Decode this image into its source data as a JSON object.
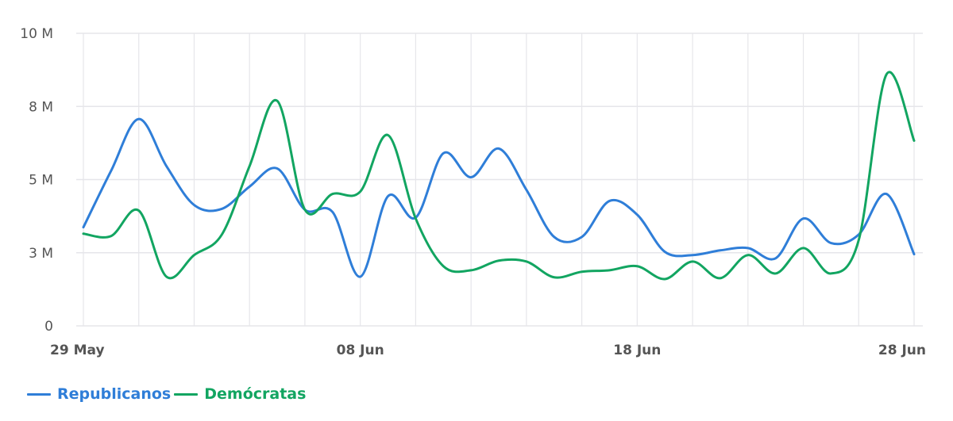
{
  "chart_data": {
    "type": "line",
    "title": "",
    "xlabel": "",
    "ylabel": "",
    "ylim": [
      0,
      10
    ],
    "y_ticks": [
      {
        "value": 0,
        "label": "0"
      },
      {
        "value": 2.5,
        "label": "3 M"
      },
      {
        "value": 5,
        "label": "5 M"
      },
      {
        "value": 7.5,
        "label": "8 M"
      },
      {
        "value": 10,
        "label": "10 M"
      }
    ],
    "x_ticks": [
      {
        "index": 0,
        "label": "29 May"
      },
      {
        "index": 10,
        "label": "08 Jun"
      },
      {
        "index": 20,
        "label": "18 Jun"
      },
      {
        "index": 30,
        "label": "28 Jun"
      }
    ],
    "x": [
      "29 May",
      "30 May",
      "31 May",
      "01 Jun",
      "02 Jun",
      "03 Jun",
      "04 Jun",
      "05 Jun",
      "06 Jun",
      "07 Jun",
      "08 Jun",
      "09 Jun",
      "10 Jun",
      "11 Jun",
      "12 Jun",
      "13 Jun",
      "14 Jun",
      "15 Jun",
      "16 Jun",
      "17 Jun",
      "18 Jun",
      "19 Jun",
      "20 Jun",
      "21 Jun",
      "22 Jun",
      "23 Jun",
      "24 Jun",
      "25 Jun",
      "26 Jun",
      "27 Jun",
      "28 Jun"
    ],
    "grid": true,
    "legend_position": "bottom-left",
    "series": [
      {
        "name": "Republicanos",
        "color": "#2f7ed8",
        "values": [
          3.37,
          5.3,
          7.07,
          5.46,
          4.13,
          4.0,
          4.76,
          5.38,
          3.97,
          3.89,
          1.68,
          4.43,
          3.7,
          5.9,
          5.08,
          6.06,
          4.65,
          3.04,
          3.04,
          4.27,
          3.8,
          2.53,
          2.42,
          2.58,
          2.66,
          2.31,
          3.67,
          2.83,
          3.12,
          4.51,
          2.45
        ]
      },
      {
        "name": "Demócratas",
        "color": "#12a561",
        "values": [
          3.15,
          3.07,
          3.94,
          1.68,
          2.42,
          3.12,
          5.46,
          7.69,
          3.97,
          4.51,
          4.59,
          6.52,
          3.67,
          2.04,
          1.9,
          2.23,
          2.2,
          1.66,
          1.85,
          1.9,
          2.04,
          1.6,
          2.2,
          1.63,
          2.42,
          1.79,
          2.66,
          1.79,
          2.93,
          8.59,
          6.33
        ]
      }
    ]
  },
  "legend": {
    "items": [
      {
        "label": "Republicanos",
        "color": "#2f7ed8"
      },
      {
        "label": "Demócratas",
        "color": "#12a561"
      }
    ]
  },
  "colors": {
    "grid": "#e6e6ea",
    "tick_text": "#555555"
  }
}
